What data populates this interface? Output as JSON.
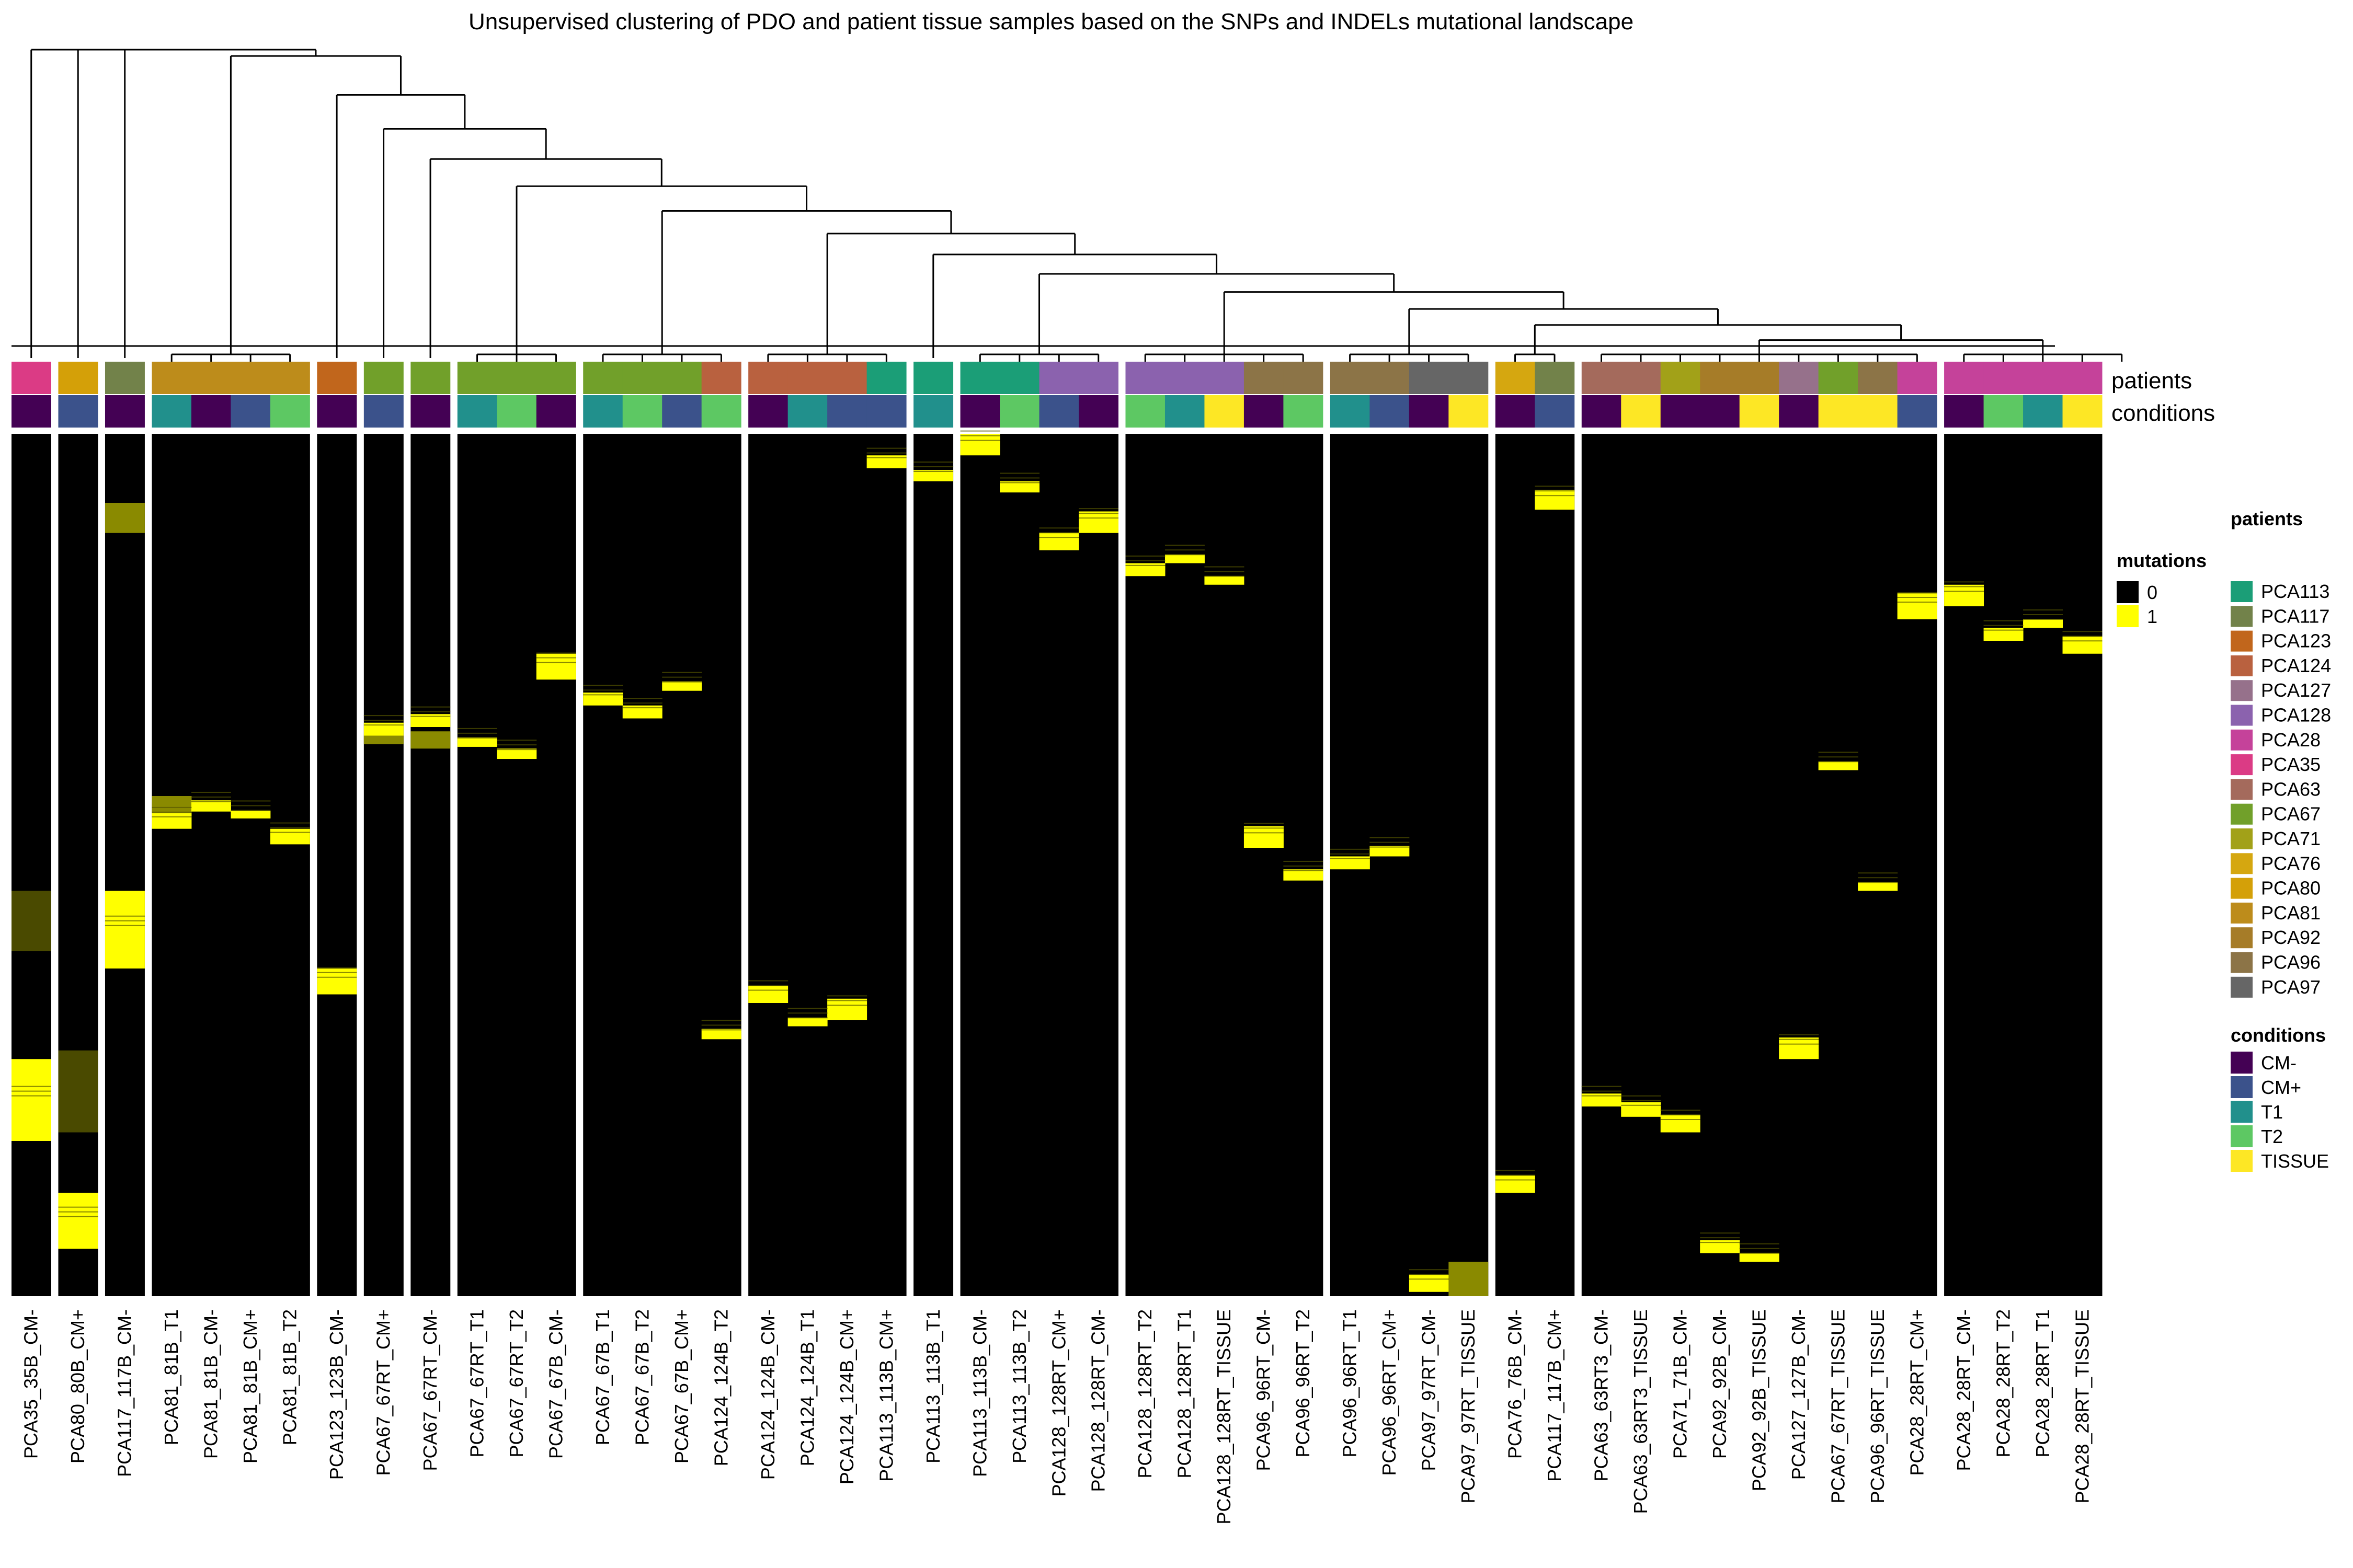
{
  "chart_data": {
    "type": "heatmap",
    "title": "Unsupervised clustering of PDO and patient tissue samples based on the SNPs and INDELs mutational landscape",
    "annotation_labels": {
      "patients": "patients",
      "conditions": "conditions"
    },
    "legends": {
      "mutations": {
        "title": "mutations",
        "items": [
          {
            "label": "0",
            "color": "#000000"
          },
          {
            "label": "1",
            "color": "#FFFF00"
          }
        ]
      },
      "patients": {
        "title": "patients",
        "items": [
          {
            "label": "PCA113",
            "color": "#1B9E77"
          },
          {
            "label": "PCA117",
            "color": "#72824A"
          },
          {
            "label": "PCA123",
            "color": "#C1661C"
          },
          {
            "label": "PCA124",
            "color": "#B9613F"
          },
          {
            "label": "PCA127",
            "color": "#96718B"
          },
          {
            "label": "PCA128",
            "color": "#8B62AE"
          },
          {
            "label": "PCA28",
            "color": "#C5429A"
          },
          {
            "label": "PCA35",
            "color": "#DB3B85"
          },
          {
            "label": "PCA63",
            "color": "#A46A5C"
          },
          {
            "label": "PCA67",
            "color": "#71A02A"
          },
          {
            "label": "PCA71",
            "color": "#A2A118"
          },
          {
            "label": "PCA76",
            "color": "#D5A710"
          },
          {
            "label": "PCA80",
            "color": "#D4A008"
          },
          {
            "label": "PCA81",
            "color": "#BD8C1B"
          },
          {
            "label": "PCA92",
            "color": "#A67C28"
          },
          {
            "label": "PCA96",
            "color": "#8C7447"
          },
          {
            "label": "PCA97",
            "color": "#666666"
          }
        ]
      },
      "conditions": {
        "title": "conditions",
        "items": [
          {
            "label": "CM-",
            "color": "#440154"
          },
          {
            "label": "CM+",
            "color": "#3B528B"
          },
          {
            "label": "T1",
            "color": "#21908C"
          },
          {
            "label": "T2",
            "color": "#5DC863"
          },
          {
            "label": "TISSUE",
            "color": "#FDE725"
          }
        ]
      }
    },
    "clusters": [
      1,
      1,
      1,
      4,
      1,
      1,
      1,
      3,
      4,
      4,
      1,
      4,
      5,
      4,
      2,
      9,
      5
    ],
    "samples": [
      {
        "label": "PCA35_35B_CM-",
        "patient": "PCA35",
        "condition": "CM-"
      },
      {
        "label": "PCA80_80B_CM+",
        "patient": "PCA80",
        "condition": "CM+"
      },
      {
        "label": "PCA117_117B_CM-",
        "patient": "PCA117",
        "condition": "CM-"
      },
      {
        "label": "PCA81_81B_T1",
        "patient": "PCA81",
        "condition": "T1"
      },
      {
        "label": "PCA81_81B_CM-",
        "patient": "PCA81",
        "condition": "CM-"
      },
      {
        "label": "PCA81_81B_CM+",
        "patient": "PCA81",
        "condition": "CM+"
      },
      {
        "label": "PCA81_81B_T2",
        "patient": "PCA81",
        "condition": "T2"
      },
      {
        "label": "PCA123_123B_CM-",
        "patient": "PCA123",
        "condition": "CM-"
      },
      {
        "label": "PCA67_67RT_CM+",
        "patient": "PCA67",
        "condition": "CM+"
      },
      {
        "label": "PCA67_67RT_CM-",
        "patient": "PCA67",
        "condition": "CM-"
      },
      {
        "label": "PCA67_67RT_T1",
        "patient": "PCA67",
        "condition": "T1"
      },
      {
        "label": "PCA67_67RT_T2",
        "patient": "PCA67",
        "condition": "T2"
      },
      {
        "label": "PCA67_67B_CM-",
        "patient": "PCA67",
        "condition": "CM-"
      },
      {
        "label": "PCA67_67B_T1",
        "patient": "PCA67",
        "condition": "T1"
      },
      {
        "label": "PCA67_67B_T2",
        "patient": "PCA67",
        "condition": "T2"
      },
      {
        "label": "PCA67_67B_CM+",
        "patient": "PCA67",
        "condition": "CM+"
      },
      {
        "label": "PCA124_124B_T2",
        "patient": "PCA124",
        "condition": "T2"
      },
      {
        "label": "PCA124_124B_CM-",
        "patient": "PCA124",
        "condition": "CM-"
      },
      {
        "label": "PCA124_124B_T1",
        "patient": "PCA124",
        "condition": "T1"
      },
      {
        "label": "PCA124_124B_CM+",
        "patient": "PCA124",
        "condition": "CM+"
      },
      {
        "label": "PCA113_113B_CM+",
        "patient": "PCA113",
        "condition": "CM+"
      },
      {
        "label": "PCA113_113B_T1",
        "patient": "PCA113",
        "condition": "T1"
      },
      {
        "label": "PCA113_113B_CM-",
        "patient": "PCA113",
        "condition": "CM-"
      },
      {
        "label": "PCA113_113B_T2",
        "patient": "PCA113",
        "condition": "T2"
      },
      {
        "label": "PCA128_128RT_CM+",
        "patient": "PCA128",
        "condition": "CM+"
      },
      {
        "label": "PCA128_128RT_CM-",
        "patient": "PCA128",
        "condition": "CM-"
      },
      {
        "label": "PCA128_128RT_T2",
        "patient": "PCA128",
        "condition": "T2"
      },
      {
        "label": "PCA128_128RT_T1",
        "patient": "PCA128",
        "condition": "T1"
      },
      {
        "label": "PCA128_128RT_TISSUE",
        "patient": "PCA128",
        "condition": "TISSUE"
      },
      {
        "label": "PCA96_96RT_CM-",
        "patient": "PCA96",
        "condition": "CM-"
      },
      {
        "label": "PCA96_96RT_T2",
        "patient": "PCA96",
        "condition": "T2"
      },
      {
        "label": "PCA96_96RT_T1",
        "patient": "PCA96",
        "condition": "T1"
      },
      {
        "label": "PCA96_96RT_CM+",
        "patient": "PCA96",
        "condition": "CM+"
      },
      {
        "label": "PCA97_97RT_CM-",
        "patient": "PCA97",
        "condition": "CM-"
      },
      {
        "label": "PCA97_97RT_TISSUE",
        "patient": "PCA97",
        "condition": "TISSUE"
      },
      {
        "label": "PCA76_76B_CM-",
        "patient": "PCA76",
        "condition": "CM-"
      },
      {
        "label": "PCA117_117B_CM+",
        "patient": "PCA117",
        "condition": "CM+"
      },
      {
        "label": "PCA63_63RT3_CM-",
        "patient": "PCA63",
        "condition": "CM-"
      },
      {
        "label": "PCA63_63RT3_TISSUE",
        "patient": "PCA63",
        "condition": "TISSUE"
      },
      {
        "label": "PCA71_71B_CM-",
        "patient": "PCA71",
        "condition": "CM-"
      },
      {
        "label": "PCA92_92B_CM-",
        "patient": "PCA92",
        "condition": "CM-"
      },
      {
        "label": "PCA92_92B_TISSUE",
        "patient": "PCA92",
        "condition": "TISSUE"
      },
      {
        "label": "PCA127_127B_CM-",
        "patient": "PCA127",
        "condition": "CM-"
      },
      {
        "label": "PCA67_67RT_TISSUE",
        "patient": "PCA67",
        "condition": "TISSUE"
      },
      {
        "label": "PCA96_96RT_TISSUE",
        "patient": "PCA96",
        "condition": "TISSUE"
      },
      {
        "label": "PCA28_28RT_CM+",
        "patient": "PCA28",
        "condition": "CM+"
      },
      {
        "label": "PCA28_28RT_CM-",
        "patient": "PCA28",
        "condition": "CM-"
      },
      {
        "label": "PCA28_28RT_T2",
        "patient": "PCA28",
        "condition": "T2"
      },
      {
        "label": "PCA28_28RT_T1",
        "patient": "PCA28",
        "condition": "T1"
      },
      {
        "label": "PCA28_28RT_TISSUE",
        "patient": "PCA28",
        "condition": "TISSUE"
      }
    ],
    "mutation_blocks": {
      "description_units": "variant index 0-1000 from top to bottom",
      "blocks": [
        {
          "sample": "PCA35_35B_CM-",
          "start": 725,
          "end": 820,
          "value": 1
        },
        {
          "sample": "PCA35_35B_CM-",
          "start": 530,
          "end": 600,
          "value": 0.3
        },
        {
          "sample": "PCA80_80B_CM+",
          "start": 715,
          "end": 810,
          "value": 0.5
        },
        {
          "sample": "PCA80_80B_CM+",
          "start": 880,
          "end": 945,
          "value": 1
        },
        {
          "sample": "PCA117_117B_CM-",
          "start": 530,
          "end": 620,
          "value": 1
        },
        {
          "sample": "PCA117_117B_CM-",
          "start": 80,
          "end": 115,
          "value": 0.6
        },
        {
          "sample": "PCA81_81B_T1",
          "start": 420,
          "end": 440,
          "value": 0.6
        },
        {
          "sample": "PCA81_81B_T1",
          "start": 425,
          "end": 438,
          "value": 0.6
        },
        {
          "sample": "PCA81_81B_T1",
          "start": 427,
          "end": 445,
          "value": 0.6
        },
        {
          "sample": "PCA81_81B_T1",
          "start": 420,
          "end": 440,
          "value": 0.6
        },
        {
          "sample": "PCA81_81B_T1",
          "start": 440,
          "end": 458,
          "value": 1
        },
        {
          "sample": "PCA81_81B_CM-",
          "start": 425,
          "end": 438,
          "value": 1
        },
        {
          "sample": "PCA81_81B_CM+",
          "start": 437,
          "end": 446,
          "value": 1
        },
        {
          "sample": "PCA81_81B_T2",
          "start": 458,
          "end": 476,
          "value": 1
        },
        {
          "sample": "PCA123_123B_CM-",
          "start": 620,
          "end": 650,
          "value": 1
        },
        {
          "sample": "PCA67_67RT_CM+",
          "start": 350,
          "end": 360,
          "value": 0.6
        },
        {
          "sample": "PCA67_67RT_CM-",
          "start": 345,
          "end": 365,
          "value": 0.6
        },
        {
          "sample": "PCA67_67RT_CM+",
          "start": 335,
          "end": 350,
          "value": 1
        },
        {
          "sample": "PCA67_67RT_CM-",
          "start": 325,
          "end": 340,
          "value": 1
        },
        {
          "sample": "PCA67_67RT_T1",
          "start": 352,
          "end": 363,
          "value": 1
        },
        {
          "sample": "PCA67_67RT_T2",
          "start": 365,
          "end": 377,
          "value": 1
        },
        {
          "sample": "PCA67_67B_CM-",
          "start": 255,
          "end": 285,
          "value": 1
        },
        {
          "sample": "PCA67_67B_T1",
          "start": 300,
          "end": 315,
          "value": 1
        },
        {
          "sample": "PCA67_67B_T2",
          "start": 315,
          "end": 330,
          "value": 1
        },
        {
          "sample": "PCA67_67B_CM+",
          "start": 287,
          "end": 298,
          "value": 1
        },
        {
          "sample": "PCA124_124B_T2",
          "start": 690,
          "end": 702,
          "value": 1
        },
        {
          "sample": "PCA124_124B_CM-",
          "start": 640,
          "end": 660,
          "value": 1
        },
        {
          "sample": "PCA124_124B_T1",
          "start": 677,
          "end": 687,
          "value": 1
        },
        {
          "sample": "PCA124_124B_CM+",
          "start": 655,
          "end": 680,
          "value": 1
        },
        {
          "sample": "PCA113_113B_CM+",
          "start": 25,
          "end": 40,
          "value": 1
        },
        {
          "sample": "PCA113_113B_T1",
          "start": 42,
          "end": 55,
          "value": 1
        },
        {
          "sample": "PCA113_113B_CM-",
          "start": 0,
          "end": 25,
          "value": 1
        },
        {
          "sample": "PCA113_113B_T2",
          "start": 55,
          "end": 68,
          "value": 1
        },
        {
          "sample": "PCA128_128RT_CM+",
          "start": 115,
          "end": 135,
          "value": 1
        },
        {
          "sample": "PCA128_128RT_CM-",
          "start": 90,
          "end": 115,
          "value": 1
        },
        {
          "sample": "PCA128_128RT_T2",
          "start": 150,
          "end": 165,
          "value": 1
        },
        {
          "sample": "PCA128_128RT_T1",
          "start": 140,
          "end": 150,
          "value": 1
        },
        {
          "sample": "PCA128_128RT_TISSUE",
          "start": 165,
          "end": 175,
          "value": 1
        },
        {
          "sample": "PCA96_96RT_CM-",
          "start": 455,
          "end": 480,
          "value": 1
        },
        {
          "sample": "PCA96_96RT_T2",
          "start": 505,
          "end": 518,
          "value": 1
        },
        {
          "sample": "PCA96_96RT_T1",
          "start": 490,
          "end": 505,
          "value": 1
        },
        {
          "sample": "PCA96_96RT_CM+",
          "start": 478,
          "end": 490,
          "value": 1
        },
        {
          "sample": "PCA97_97RT_CM-",
          "start": 975,
          "end": 995,
          "value": 1
        },
        {
          "sample": "PCA97_97RT_TISSUE",
          "start": 960,
          "end": 1000,
          "value": 0.7
        },
        {
          "sample": "PCA76_76B_CM-",
          "start": 860,
          "end": 880,
          "value": 1
        },
        {
          "sample": "PCA117_117B_CM+",
          "start": 65,
          "end": 88,
          "value": 1
        },
        {
          "sample": "PCA63_63RT3_CM-",
          "start": 765,
          "end": 780,
          "value": 1
        },
        {
          "sample": "PCA63_63RT3_TISSUE",
          "start": 775,
          "end": 792,
          "value": 1
        },
        {
          "sample": "PCA71_71B_CM-",
          "start": 790,
          "end": 810,
          "value": 1
        },
        {
          "sample": "PCA92_92B_CM-",
          "start": 935,
          "end": 950,
          "value": 1
        },
        {
          "sample": "PCA92_92B_TISSUE",
          "start": 950,
          "end": 960,
          "value": 1
        },
        {
          "sample": "PCA127_127B_CM-",
          "start": 700,
          "end": 725,
          "value": 1
        },
        {
          "sample": "PCA67_67RT_TISSUE",
          "start": 380,
          "end": 390,
          "value": 1
        },
        {
          "sample": "PCA96_96RT_TISSUE",
          "start": 520,
          "end": 530,
          "value": 1
        },
        {
          "sample": "PCA28_28RT_CM+",
          "start": 185,
          "end": 215,
          "value": 1
        },
        {
          "sample": "PCA28_28RT_CM-",
          "start": 175,
          "end": 200,
          "value": 1
        },
        {
          "sample": "PCA28_28RT_T2",
          "start": 225,
          "end": 240,
          "value": 1
        },
        {
          "sample": "PCA28_28RT_T1",
          "start": 215,
          "end": 225,
          "value": 1
        },
        {
          "sample": "PCA28_28RT_TISSUE",
          "start": 235,
          "end": 255,
          "value": 1
        }
      ]
    }
  }
}
